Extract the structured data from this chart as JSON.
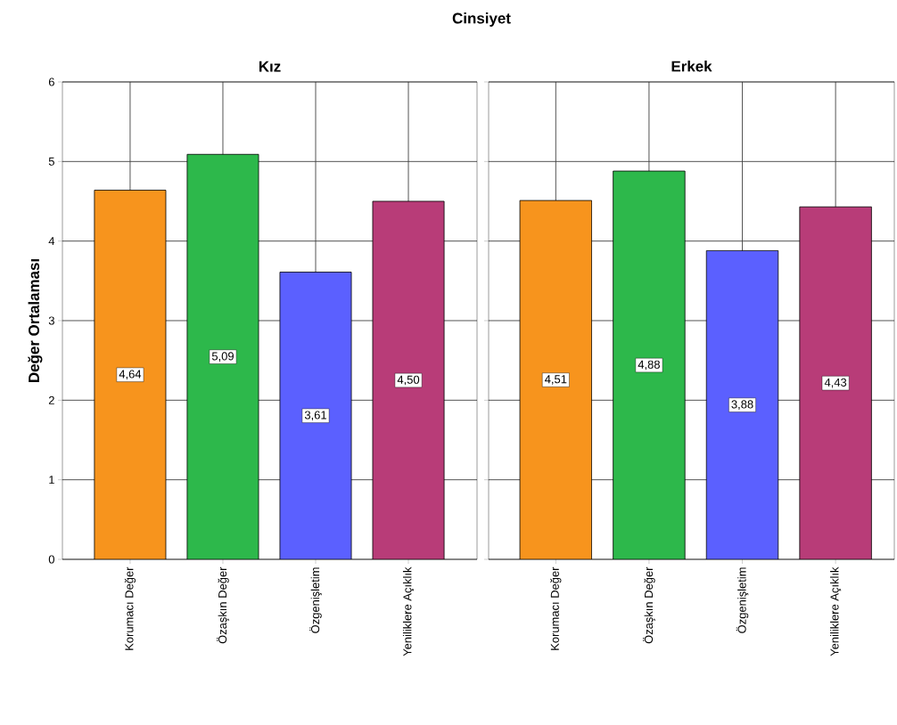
{
  "chart_data": [
    {
      "type": "bar",
      "title": "Kız",
      "ylabel": "Değer Ortalaması",
      "annotations": [
        "Cinsiyet"
      ],
      "categories": [
        "Korumacı Değer",
        "Özaşkın Değer",
        "Özgenişletim",
        "Yeniliklere Açıklık"
      ],
      "values": [
        4.64,
        5.09,
        3.61,
        4.5
      ],
      "value_labels": [
        "4,64",
        "5,09",
        "3,61",
        "4,50"
      ],
      "colors": [
        "#f7941d",
        "#2db84b",
        "#5b60ff",
        "#b83c78"
      ],
      "ylim": [
        0,
        6
      ],
      "yticks": [
        0,
        1,
        2,
        3,
        4,
        5,
        6
      ],
      "grid": true
    },
    {
      "type": "bar",
      "title": "Erkek",
      "categories": [
        "Korumacı Değer",
        "Özaşkın Değer",
        "Özgenişletim",
        "Yeniliklere Açıklık"
      ],
      "values": [
        4.51,
        4.88,
        3.88,
        4.43
      ],
      "value_labels": [
        "4,51",
        "4,88",
        "3,88",
        "4,43"
      ],
      "colors": [
        "#f7941d",
        "#2db84b",
        "#5b60ff",
        "#b83c78"
      ],
      "ylim": [
        0,
        6
      ],
      "yticks": [
        0,
        1,
        2,
        3,
        4,
        5,
        6
      ],
      "grid": true,
      "tick_labels": "x"
    }
  ]
}
